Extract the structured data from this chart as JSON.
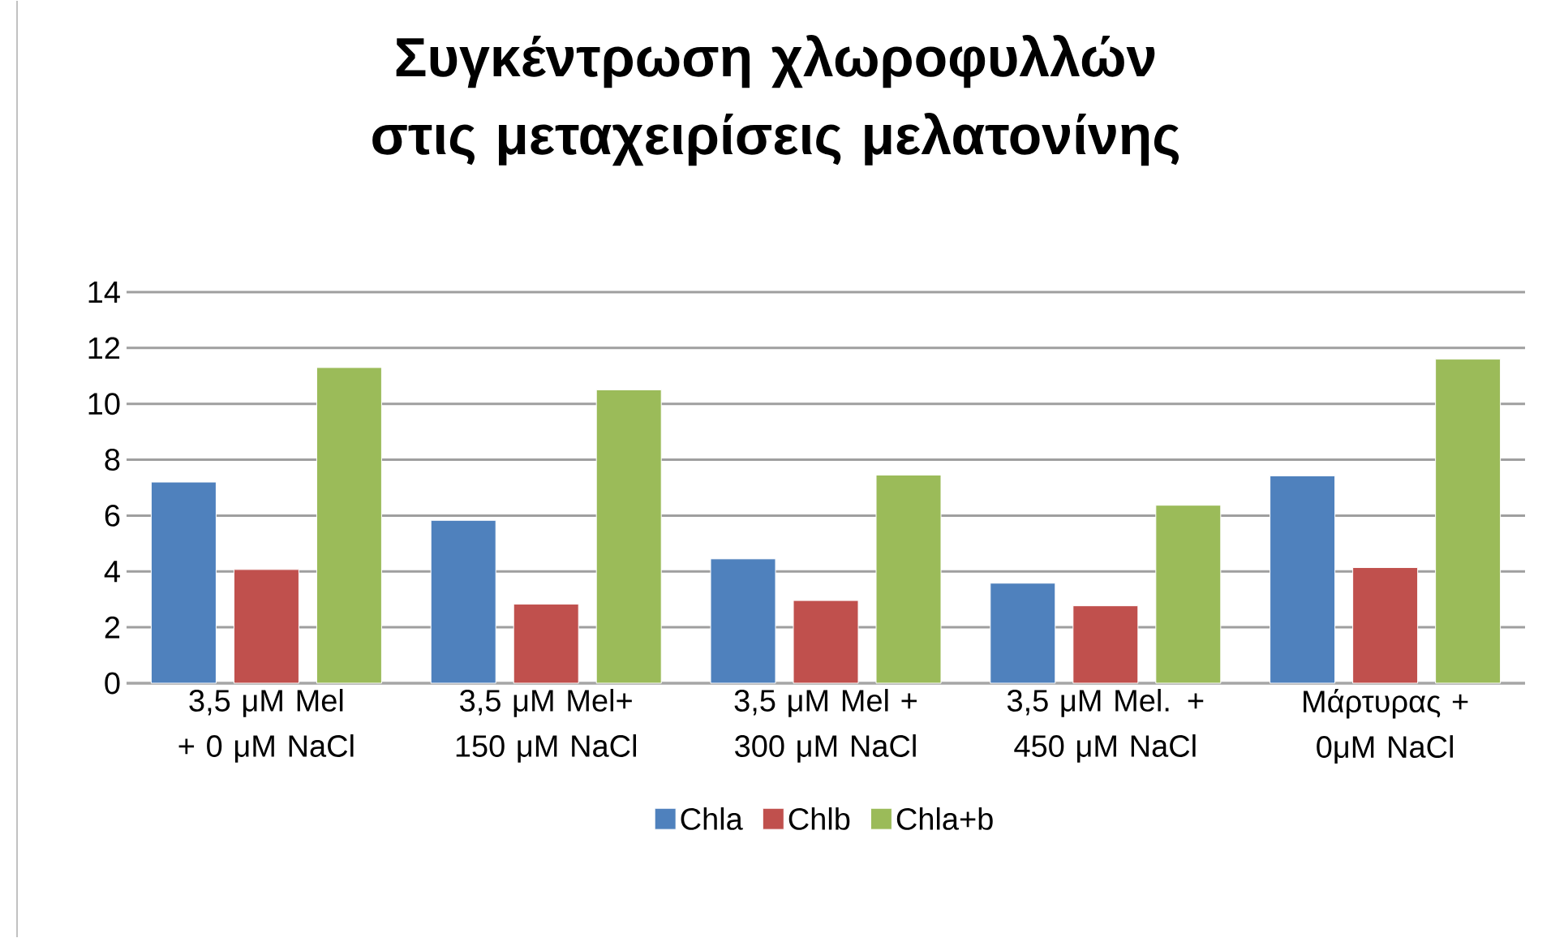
{
  "chart_data": {
    "type": "bar",
    "title": "Συγκέντρωση χλωροφυλλών στις μεταχειρίσεις μελατονίνης",
    "categories": [
      "3,5 μM Mel + 0 μM NaCl",
      "3,5 μM Mel+ 150 μM NaCl",
      "3,5 μM Mel + 300 μM NaCl",
      "3,5 μM Mel. + 450 μM NaCl",
      "Μάρτυρας + 0μM NaCl"
    ],
    "series": [
      {
        "name": "Chla",
        "color": "#4f81bd",
        "values": [
          7.2,
          5.83,
          4.45,
          3.58,
          7.42
        ]
      },
      {
        "name": "Chlb",
        "color": "#c0504d",
        "values": [
          4.07,
          2.83,
          2.96,
          2.77,
          4.14
        ]
      },
      {
        "name": "Chla+b",
        "color": "#9bbb59",
        "values": [
          11.3,
          10.5,
          7.45,
          6.37,
          11.6
        ]
      }
    ],
    "ylim": [
      0,
      14
    ],
    "yticks": [
      0,
      2,
      4,
      6,
      8,
      10,
      12,
      14
    ],
    "grid": "y",
    "legend": "bottom"
  }
}
